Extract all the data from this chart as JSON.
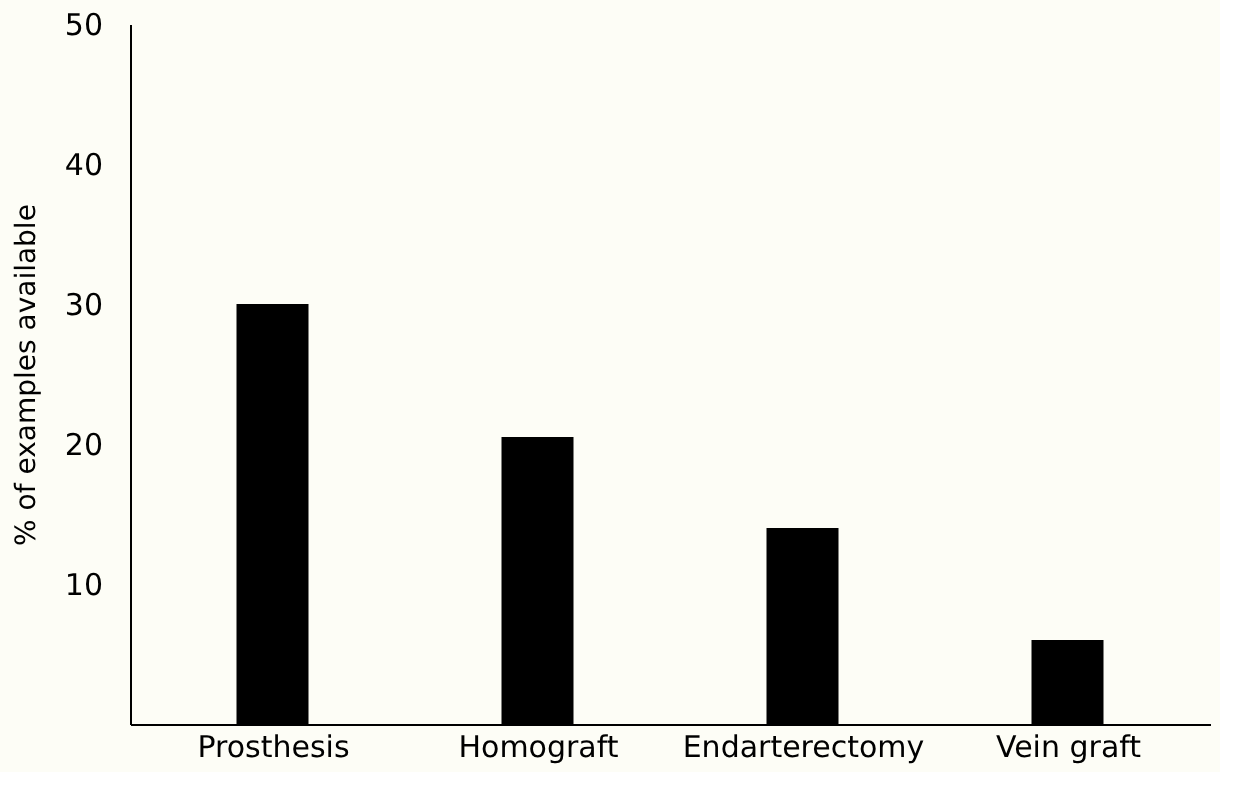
{
  "chart_data": {
    "type": "bar",
    "ylabel": "% of examples available",
    "categories": [
      "Prosthesis",
      "Homograft",
      "Endarterectomy",
      "Vein graft"
    ],
    "values": [
      30,
      20.5,
      14,
      6
    ],
    "color": "#000000",
    "ylim": [
      0,
      50
    ],
    "yticks": [
      10,
      20,
      30,
      40,
      50
    ],
    "grid": false
  }
}
